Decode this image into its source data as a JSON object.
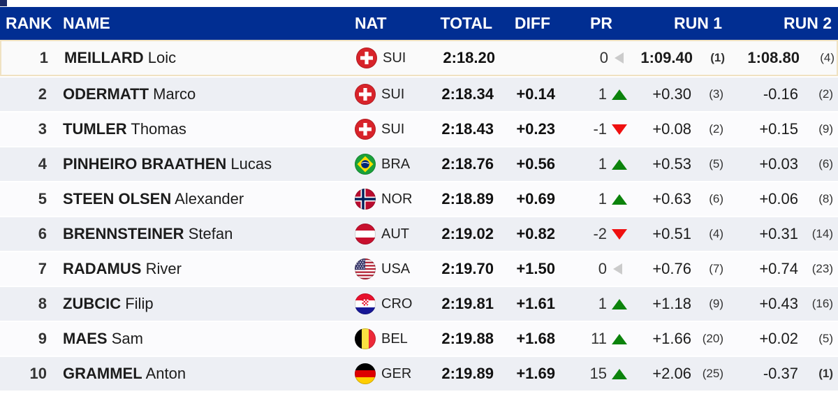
{
  "table": {
    "columns": {
      "rank": "RANK",
      "name": "NAME",
      "nat": "NAT",
      "total": "TOTAL",
      "diff": "DIFF",
      "pr": "PR",
      "run1": "RUN 1",
      "run2": "RUN 2"
    },
    "rows": [
      {
        "rank": "1",
        "surname": "MEILLARD",
        "given": "Loic",
        "nat": "SUI",
        "total": "2:18.20",
        "diff": "",
        "pr": {
          "value": "0",
          "dir": "same"
        },
        "run1": {
          "value": "1:09.40",
          "rank": "(1)"
        },
        "run2": {
          "value": "1:08.80",
          "rank": "(4)"
        },
        "highlight": true,
        "bold_runs": true
      },
      {
        "rank": "2",
        "surname": "ODERMATT",
        "given": "Marco",
        "nat": "SUI",
        "total": "2:18.34",
        "diff": "+0.14",
        "pr": {
          "value": "1",
          "dir": "up"
        },
        "run1": {
          "value": "+0.30",
          "rank": "(3)"
        },
        "run2": {
          "value": "-0.16",
          "rank": "(2)"
        }
      },
      {
        "rank": "3",
        "surname": "TUMLER",
        "given": "Thomas",
        "nat": "SUI",
        "total": "2:18.43",
        "diff": "+0.23",
        "pr": {
          "value": "-1",
          "dir": "down"
        },
        "run1": {
          "value": "+0.08",
          "rank": "(2)"
        },
        "run2": {
          "value": "+0.15",
          "rank": "(9)"
        }
      },
      {
        "rank": "4",
        "surname": "PINHEIRO BRAATHEN",
        "given": "Lucas",
        "nat": "BRA",
        "total": "2:18.76",
        "diff": "+0.56",
        "pr": {
          "value": "1",
          "dir": "up"
        },
        "run1": {
          "value": "+0.53",
          "rank": "(5)"
        },
        "run2": {
          "value": "+0.03",
          "rank": "(6)"
        }
      },
      {
        "rank": "5",
        "surname": "STEEN OLSEN",
        "given": "Alexander",
        "nat": "NOR",
        "total": "2:18.89",
        "diff": "+0.69",
        "pr": {
          "value": "1",
          "dir": "up"
        },
        "run1": {
          "value": "+0.63",
          "rank": "(6)"
        },
        "run2": {
          "value": "+0.06",
          "rank": "(8)"
        }
      },
      {
        "rank": "6",
        "surname": "BRENNSTEINER",
        "given": "Stefan",
        "nat": "AUT",
        "total": "2:19.02",
        "diff": "+0.82",
        "pr": {
          "value": "-2",
          "dir": "down"
        },
        "run1": {
          "value": "+0.51",
          "rank": "(4)"
        },
        "run2": {
          "value": "+0.31",
          "rank": "(14)"
        }
      },
      {
        "rank": "7",
        "surname": "RADAMUS",
        "given": "River",
        "nat": "USA",
        "total": "2:19.70",
        "diff": "+1.50",
        "pr": {
          "value": "0",
          "dir": "same"
        },
        "run1": {
          "value": "+0.76",
          "rank": "(7)"
        },
        "run2": {
          "value": "+0.74",
          "rank": "(23)"
        }
      },
      {
        "rank": "8",
        "surname": "ZUBCIC",
        "given": "Filip",
        "nat": "CRO",
        "total": "2:19.81",
        "diff": "+1.61",
        "pr": {
          "value": "1",
          "dir": "up"
        },
        "run1": {
          "value": "+1.18",
          "rank": "(9)"
        },
        "run2": {
          "value": "+0.43",
          "rank": "(16)"
        }
      },
      {
        "rank": "9",
        "surname": "MAES",
        "given": "Sam",
        "nat": "BEL",
        "total": "2:19.88",
        "diff": "+1.68",
        "pr": {
          "value": "11",
          "dir": "up"
        },
        "run1": {
          "value": "+1.66",
          "rank": "(20)"
        },
        "run2": {
          "value": "+0.02",
          "rank": "(5)"
        }
      },
      {
        "rank": "10",
        "surname": "GRAMMEL",
        "given": "Anton",
        "nat": "GER",
        "total": "2:19.89",
        "diff": "+1.69",
        "pr": {
          "value": "15",
          "dir": "up"
        },
        "run1": {
          "value": "+2.06",
          "rank": "(25)"
        },
        "run2": {
          "value": "-0.37",
          "rank": "(1)"
        }
      }
    ]
  },
  "colors": {
    "header_bg": "#012E92",
    "header_text": "#FFFFFF",
    "row_bg": "#FBFBFD",
    "row_alt_bg": "#EDEFF4",
    "highlight_border": "#F0E2C2",
    "up_green": "#0C830C",
    "down_red": "#EF1010",
    "same_gray": "#CBCBCB"
  }
}
